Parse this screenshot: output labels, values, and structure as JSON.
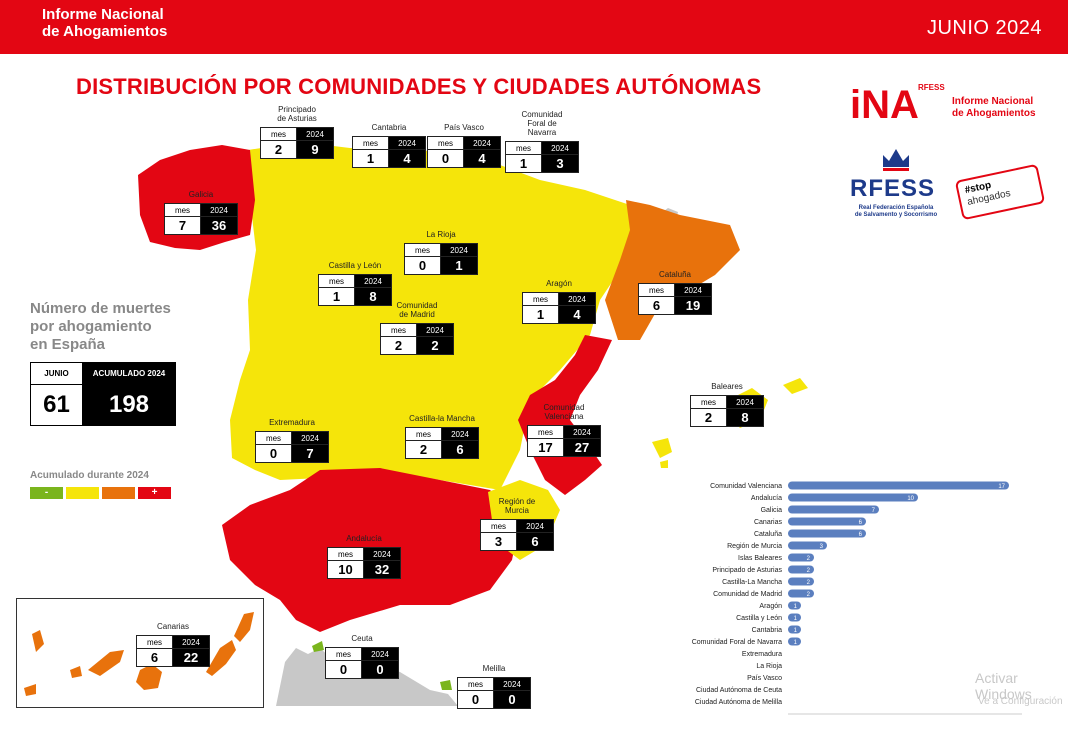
{
  "header": {
    "brand_line1": "Informe Nacional",
    "brand_line2": "de Ahogamientos",
    "date": "JUNIO 2024"
  },
  "title": "DISTRIBUCIÓN POR COMUNIDADES Y CIUDADES AUTÓNOMAS",
  "summary": {
    "title_line1": "Número de muertes",
    "title_line2": "por ahogamiento",
    "title_line3": "en España",
    "month_label": "JUNIO",
    "acc_label": "ACUMULADO 2024",
    "month_value": "61",
    "acc_value": "198"
  },
  "legend": {
    "title": "Acumulado durante 2024",
    "items": [
      {
        "label": "-",
        "color": "#7ab51d"
      },
      {
        "label": "",
        "color": "#f5e50a"
      },
      {
        "label": "",
        "color": "#e8720c"
      },
      {
        "label": "+",
        "color": "#e30613"
      }
    ]
  },
  "table_headers": {
    "mes": "mes",
    "year": "2024"
  },
  "regions": [
    {
      "id": "asturias",
      "name_lines": [
        "Principado",
        "de Asturias"
      ],
      "mes": "2",
      "y2024": "9"
    },
    {
      "id": "cantabria",
      "name_lines": [
        "Cantabria"
      ],
      "mes": "1",
      "y2024": "4"
    },
    {
      "id": "pais-vasco",
      "name_lines": [
        "País Vasco"
      ],
      "mes": "0",
      "y2024": "4"
    },
    {
      "id": "navarra",
      "name_lines": [
        "Comunidad",
        "Foral de",
        "Navarra"
      ],
      "mes": "1",
      "y2024": "3"
    },
    {
      "id": "galicia",
      "name_lines": [
        "Galicia"
      ],
      "mes": "7",
      "y2024": "36"
    },
    {
      "id": "la-rioja",
      "name_lines": [
        "La Rioja"
      ],
      "mes": "0",
      "y2024": "1"
    },
    {
      "id": "castilla-leon",
      "name_lines": [
        "Castilla y León"
      ],
      "mes": "1",
      "y2024": "8"
    },
    {
      "id": "aragon",
      "name_lines": [
        "Aragón"
      ],
      "mes": "1",
      "y2024": "4"
    },
    {
      "id": "cataluna",
      "name_lines": [
        "Cataluña"
      ],
      "mes": "6",
      "y2024": "19"
    },
    {
      "id": "madrid",
      "name_lines": [
        "Comunidad",
        "de Madrid"
      ],
      "mes": "2",
      "y2024": "2"
    },
    {
      "id": "baleares",
      "name_lines": [
        "Baleares"
      ],
      "mes": "2",
      "y2024": "8"
    },
    {
      "id": "extremadura",
      "name_lines": [
        "Extremadura"
      ],
      "mes": "0",
      "y2024": "7"
    },
    {
      "id": "castilla-mancha",
      "name_lines": [
        "Castilla-la Mancha"
      ],
      "mes": "2",
      "y2024": "6"
    },
    {
      "id": "valencia",
      "name_lines": [
        "Comunidad",
        "Valenciana"
      ],
      "mes": "17",
      "y2024": "27"
    },
    {
      "id": "murcia",
      "name_lines": [
        "Región de",
        "Murcia"
      ],
      "mes": "3",
      "y2024": "6"
    },
    {
      "id": "andalucia",
      "name_lines": [
        "Andalucía"
      ],
      "mes": "10",
      "y2024": "32"
    },
    {
      "id": "canarias",
      "name_lines": [
        "Canarias"
      ],
      "mes": "6",
      "y2024": "22"
    },
    {
      "id": "ceuta",
      "name_lines": [
        "Ceuta"
      ],
      "mes": "0",
      "y2024": "0"
    },
    {
      "id": "melilla",
      "name_lines": [
        "Melilla"
      ],
      "mes": "0",
      "y2024": "0"
    }
  ],
  "logos": {
    "ina_mark": "iNA",
    "ina_small": "RFESS",
    "ina_text_line1": "Informe Nacional",
    "ina_text_line2": "de Ahogamientos",
    "rfess": "RFESS",
    "rfess_sub_line1": "Real Federación Española",
    "rfess_sub_line2": "de Salvamento y Socorrismo",
    "stop_line1": "#stop",
    "stop_line2": "ahogados"
  },
  "colors": {
    "red": "#e30613",
    "orange": "#e8720c",
    "yellow": "#f5e50a",
    "green": "#7ab51d",
    "bar": "#5b7fbf",
    "neighbor": "#c8c8c8"
  },
  "chart_data": {
    "type": "bar",
    "orientation": "horizontal",
    "categories": [
      "Comunidad Valenciana",
      "Andalucía",
      "Galicia",
      "Canarias",
      "Cataluña",
      "Región de Murcia",
      "Islas Baleares",
      "Principado de Asturias",
      "Castilla-La Mancha",
      "Comunidad de Madrid",
      "Aragón",
      "Castilla y León",
      "Cantabria",
      "Comunidad Foral de Navarra",
      "Extremadura",
      "La Rioja",
      "País Vasco",
      "Ciudad Autónoma de Ceuta",
      "Ciudad Autónoma de Melilla"
    ],
    "values": [
      17,
      10,
      7,
      6,
      6,
      3,
      2,
      2,
      2,
      2,
      1,
      1,
      1,
      1,
      0,
      0,
      0,
      0,
      0
    ],
    "xticks": [
      "0",
      "2",
      "4",
      "6",
      "8",
      "10",
      "12",
      "14",
      "16",
      "18"
    ],
    "xlim": [
      0,
      18
    ]
  },
  "watermark": {
    "line1": "Activar Windows",
    "line2": "Ve a Configuración"
  }
}
